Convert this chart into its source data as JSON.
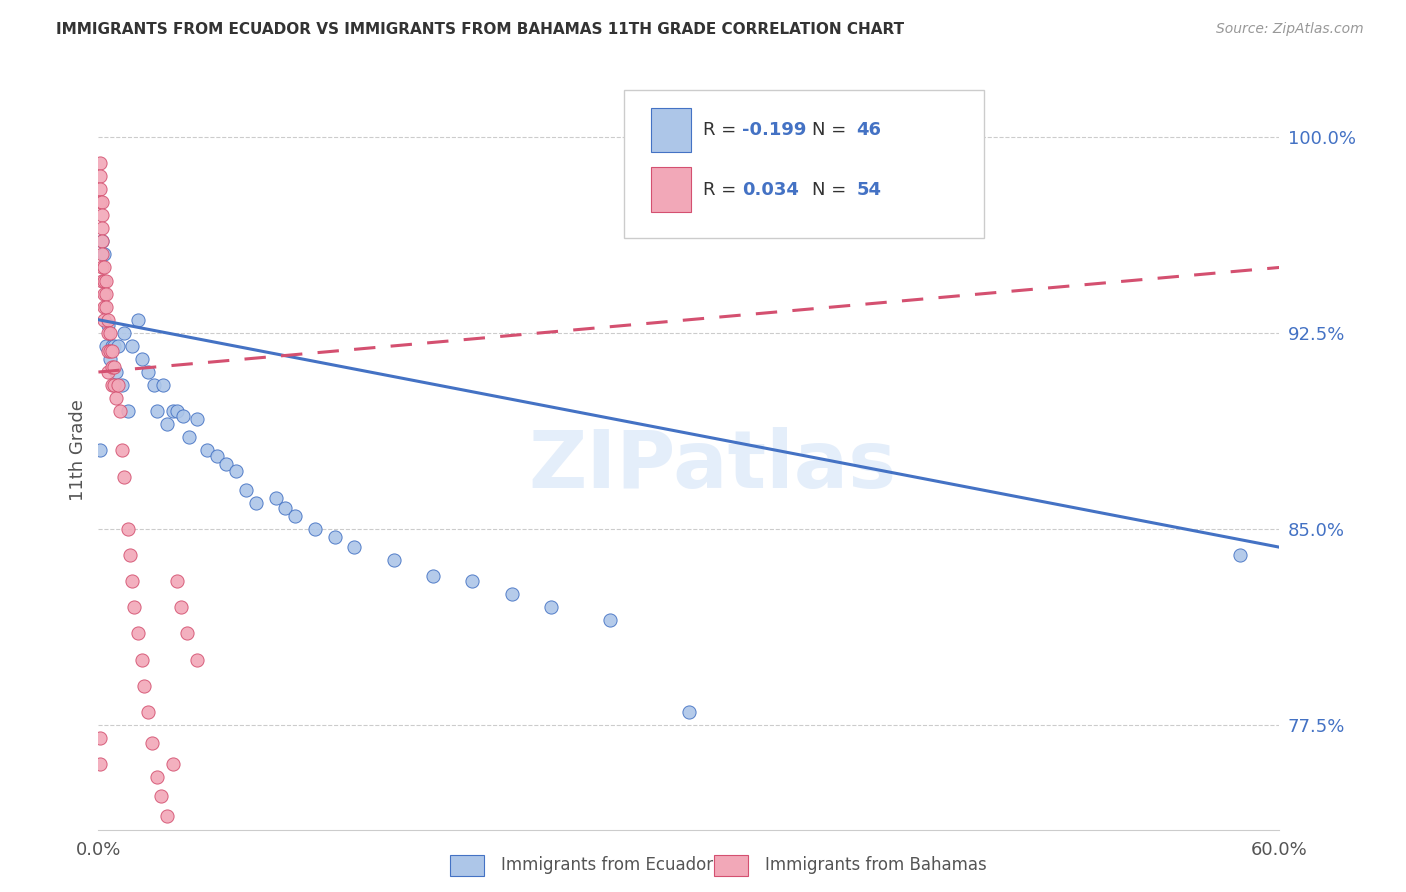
{
  "title": "IMMIGRANTS FROM ECUADOR VS IMMIGRANTS FROM BAHAMAS 11TH GRADE CORRELATION CHART",
  "source": "Source: ZipAtlas.com",
  "ylabel": "11th Grade",
  "xlim": [
    0.0,
    0.6
  ],
  "ylim": [
    0.735,
    1.025
  ],
  "yticks": [
    0.775,
    0.85,
    0.925,
    1.0
  ],
  "ytick_labels": [
    "77.5%",
    "85.0%",
    "92.5%",
    "100.0%"
  ],
  "xticks": [
    0.0,
    0.1,
    0.2,
    0.3,
    0.4,
    0.5,
    0.6
  ],
  "xtick_labels": [
    "0.0%",
    "",
    "",
    "",
    "",
    "",
    "60.0%"
  ],
  "legend_r_ecuador": "-0.199",
  "legend_n_ecuador": "46",
  "legend_r_bahamas": "0.034",
  "legend_n_bahamas": "54",
  "ecuador_color": "#adc6e8",
  "bahamas_color": "#f2a8b8",
  "trend_ecuador_color": "#4472c4",
  "trend_bahamas_color": "#d45070",
  "watermark": "ZIPatlas",
  "ecuador_x": [
    0.002,
    0.003,
    0.004,
    0.005,
    0.006,
    0.007,
    0.008,
    0.009,
    0.01,
    0.012,
    0.013,
    0.015,
    0.017,
    0.02,
    0.022,
    0.025,
    0.028,
    0.03,
    0.033,
    0.035,
    0.038,
    0.04,
    0.043,
    0.046,
    0.05,
    0.055,
    0.06,
    0.065,
    0.07,
    0.075,
    0.08,
    0.09,
    0.095,
    0.1,
    0.11,
    0.12,
    0.13,
    0.15,
    0.17,
    0.19,
    0.21,
    0.23,
    0.26,
    0.3,
    0.58,
    0.001
  ],
  "ecuador_y": [
    0.96,
    0.955,
    0.92,
    0.928,
    0.915,
    0.92,
    0.92,
    0.91,
    0.92,
    0.905,
    0.925,
    0.895,
    0.92,
    0.93,
    0.915,
    0.91,
    0.905,
    0.895,
    0.905,
    0.89,
    0.895,
    0.895,
    0.893,
    0.885,
    0.892,
    0.88,
    0.878,
    0.875,
    0.872,
    0.865,
    0.86,
    0.862,
    0.858,
    0.855,
    0.85,
    0.847,
    0.843,
    0.838,
    0.832,
    0.83,
    0.825,
    0.82,
    0.815,
    0.78,
    0.84,
    0.88
  ],
  "bahamas_x": [
    0.001,
    0.001,
    0.001,
    0.001,
    0.002,
    0.002,
    0.002,
    0.002,
    0.002,
    0.002,
    0.002,
    0.003,
    0.003,
    0.003,
    0.003,
    0.003,
    0.004,
    0.004,
    0.004,
    0.005,
    0.005,
    0.005,
    0.005,
    0.006,
    0.006,
    0.007,
    0.007,
    0.007,
    0.008,
    0.008,
    0.009,
    0.01,
    0.011,
    0.012,
    0.013,
    0.015,
    0.016,
    0.017,
    0.018,
    0.02,
    0.022,
    0.023,
    0.025,
    0.027,
    0.03,
    0.032,
    0.035,
    0.038,
    0.04,
    0.042,
    0.045,
    0.05,
    0.001,
    0.001
  ],
  "bahamas_y": [
    0.99,
    0.985,
    0.98,
    0.975,
    0.975,
    0.97,
    0.965,
    0.96,
    0.955,
    0.95,
    0.945,
    0.95,
    0.945,
    0.94,
    0.935,
    0.93,
    0.945,
    0.94,
    0.935,
    0.93,
    0.925,
    0.918,
    0.91,
    0.925,
    0.918,
    0.918,
    0.912,
    0.905,
    0.912,
    0.905,
    0.9,
    0.905,
    0.895,
    0.88,
    0.87,
    0.85,
    0.84,
    0.83,
    0.82,
    0.81,
    0.8,
    0.79,
    0.78,
    0.768,
    0.755,
    0.748,
    0.74,
    0.76,
    0.83,
    0.82,
    0.81,
    0.8,
    0.76,
    0.77
  ],
  "trend_ec_x0": 0.0,
  "trend_ec_y0": 0.93,
  "trend_ec_x1": 0.6,
  "trend_ec_y1": 0.843,
  "trend_bah_x0": 0.0,
  "trend_bah_y0": 0.91,
  "trend_bah_x1": 0.6,
  "trend_bah_y1": 0.95
}
